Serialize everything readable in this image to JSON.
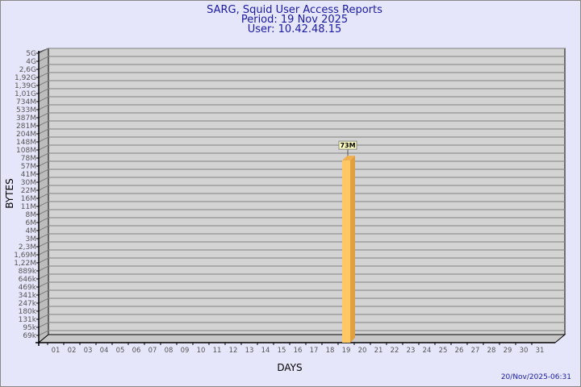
{
  "chart_data": {
    "type": "bar",
    "title": "SARG, Squid User Access Reports",
    "subtitle": [
      "Period: 19 Nov 2025",
      "User: 10.42.48.15"
    ],
    "xlabel": "DAYS",
    "ylabel": "BYTES",
    "y_scale": "log",
    "y_ticks": [
      "5G",
      "4G",
      "2,6G",
      "1,92G",
      "1,39G",
      "1,01G",
      "734M",
      "533M",
      "387M",
      "281M",
      "204M",
      "148M",
      "108M",
      "78M",
      "57M",
      "41M",
      "30M",
      "22M",
      "16M",
      "11M",
      "8M",
      "6M",
      "4M",
      "3M",
      "2,3M",
      "1,69M",
      "1,22M",
      "889k",
      "646k",
      "469k",
      "341k",
      "247k",
      "180k",
      "131k",
      "95k",
      "69k"
    ],
    "categories": [
      "01",
      "02",
      "03",
      "04",
      "05",
      "06",
      "07",
      "08",
      "09",
      "10",
      "11",
      "12",
      "13",
      "14",
      "15",
      "16",
      "17",
      "18",
      "19",
      "20",
      "21",
      "22",
      "23",
      "24",
      "25",
      "26",
      "27",
      "28",
      "29",
      "30",
      "31"
    ],
    "bars": [
      {
        "day": "19",
        "label": "73M",
        "value": 73000000
      }
    ],
    "grid": true,
    "colors": {
      "bar_front": "#ffc864",
      "bar_side": "#e0a040",
      "plot_bg": "#d3d3d3",
      "grid": "#808080"
    }
  },
  "footer": {
    "timestamp": "20/Nov/2025-06:31"
  }
}
